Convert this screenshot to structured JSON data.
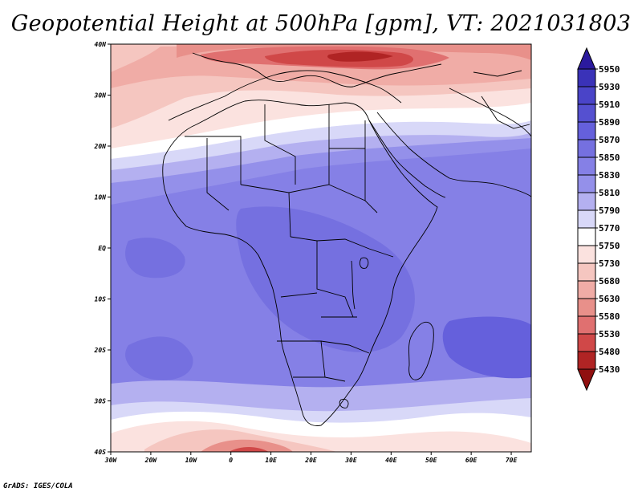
{
  "title": "Geopotential Height at 500hPa [gpm], VT: 2021031803",
  "credit": "GrADS: IGES/COLA",
  "map": {
    "region": "Africa",
    "variable": "Geopotential height",
    "level": "500hPa",
    "units": "gpm",
    "valid_time": "2021031803",
    "lon_labels": [
      "30W",
      "20W",
      "10W",
      "0",
      "10E",
      "20E",
      "30E",
      "40E",
      "50E",
      "60E",
      "70E"
    ],
    "lat_labels": [
      "40N",
      "30N",
      "20N",
      "10N",
      "EQ",
      "10S",
      "20S",
      "30S",
      "40S"
    ]
  },
  "colorbar": {
    "labels": [
      "5950",
      "5930",
      "5910",
      "5890",
      "5870",
      "5850",
      "5830",
      "5810",
      "5790",
      "5770",
      "5750",
      "5730",
      "5680",
      "5630",
      "5580",
      "5530",
      "5480",
      "5430"
    ],
    "colors": [
      "#2b1a9e",
      "#3a32b8",
      "#4a44c8",
      "#5550d0",
      "#6560dc",
      "#7570e0",
      "#8580e6",
      "#9490ea",
      "#b4b0f0",
      "#d8d8f8",
      "#ffffff",
      "#fbe2df",
      "#f5c6c0",
      "#f0aca6",
      "#e8908a",
      "#e07070",
      "#d04848",
      "#b02424",
      "#901010"
    ]
  }
}
